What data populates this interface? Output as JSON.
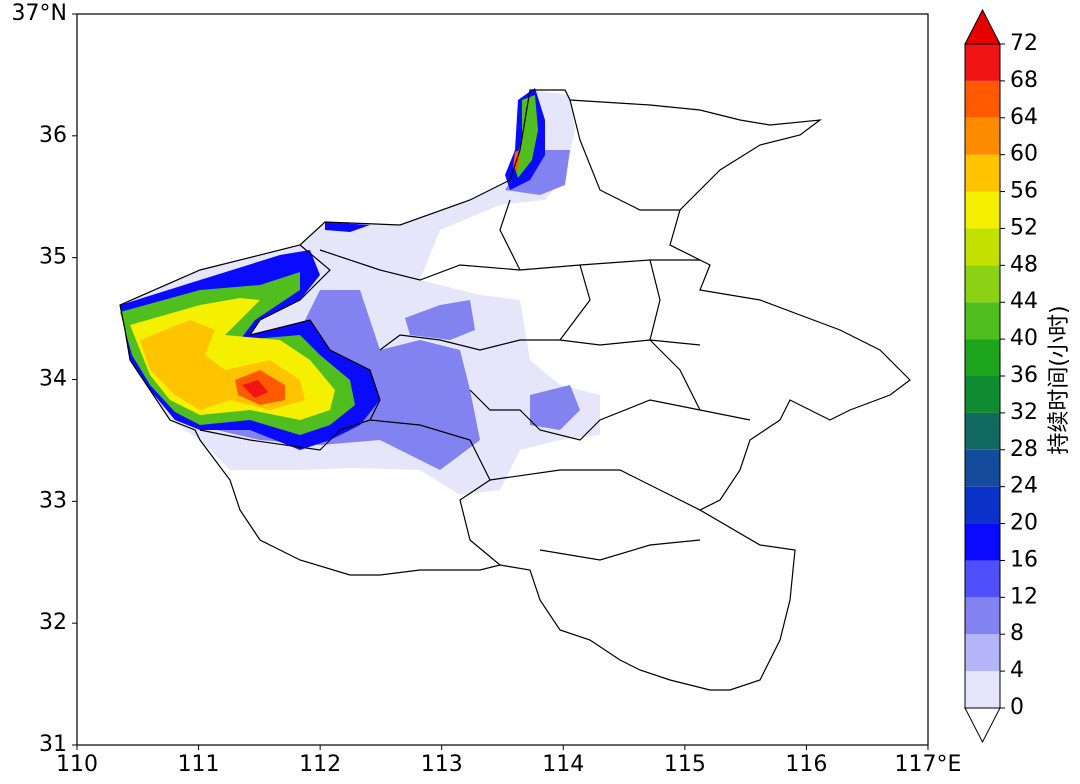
{
  "chart_data": {
    "type": "contour-map",
    "xlim": [
      110,
      117
    ],
    "xticks": [
      110,
      111,
      112,
      113,
      114,
      115,
      116,
      {
        "value": 117,
        "label": "117°E"
      }
    ],
    "ylim": [
      31,
      37
    ],
    "yticks": [
      {
        "value": 31,
        "label": "31"
      },
      32,
      33,
      34,
      35,
      36,
      {
        "value": 37,
        "label": "37°N"
      }
    ],
    "colorbar": {
      "label": "持续时间(小时)",
      "ticks": [
        0,
        4,
        8,
        12,
        16,
        20,
        24,
        28,
        32,
        36,
        40,
        44,
        48,
        52,
        56,
        60,
        64,
        68,
        72
      ],
      "colors": [
        "#e6e6fa",
        "#b4b4f8",
        "#8282f0",
        "#5050fa",
        "#0a0aff",
        "#0a32c8",
        "#144b9b",
        "#12695f",
        "#0f8c32",
        "#1ea51e",
        "#50be1e",
        "#8cd214",
        "#c3e100",
        "#f5f000",
        "#ffc300",
        "#ff8c00",
        "#ff5a00",
        "#f01414"
      ],
      "over_color": "#e60000",
      "under_color": "#ffffff"
    }
  }
}
